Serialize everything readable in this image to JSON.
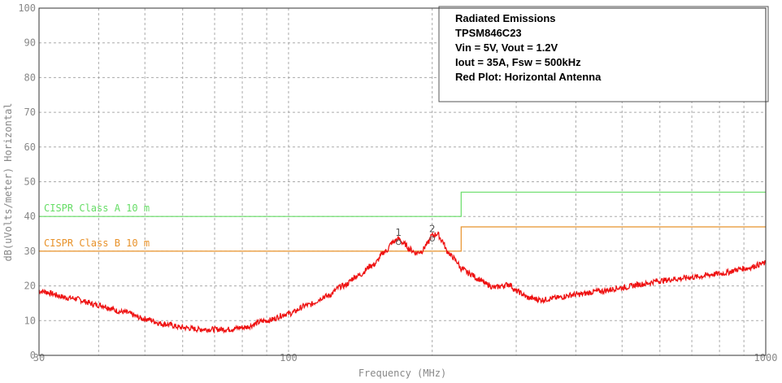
{
  "chart_data": {
    "type": "line",
    "xlabel": "Frequency (MHz)",
    "ylabel": "dB(uVolts/meter) Horizontal",
    "x_scale": "log",
    "xlim": [
      30,
      1000
    ],
    "ylim": [
      0,
      100
    ],
    "x_ticks": [
      {
        "value": 30,
        "label": "30"
      },
      {
        "value": 100,
        "label": "100"
      },
      {
        "value": 1000,
        "label": "1000"
      }
    ],
    "y_ticks": [
      0,
      10,
      20,
      30,
      40,
      50,
      60,
      70,
      80,
      90,
      100
    ],
    "grid": true,
    "info_box": {
      "position": "top-right",
      "lines": [
        "Radiated Emissions",
        "TPSM846C23",
        "Vin = 5V, Vout = 1.2V",
        "Iout = 35A, Fsw = 500kHz",
        "Red Plot: Horizontal Antenna"
      ]
    },
    "limits": [
      {
        "label": "CISPR Class A 10 m",
        "color": "#66dd66",
        "segments": [
          {
            "x": [
              30,
              230
            ],
            "y": 40
          },
          {
            "x": [
              230,
              1000
            ],
            "y": 47
          }
        ]
      },
      {
        "label": "CISPR Class B 10 m",
        "color": "#e8922a",
        "segments": [
          {
            "x": [
              30,
              230
            ],
            "y": 30
          },
          {
            "x": [
              230,
              1000
            ],
            "y": 37
          }
        ]
      }
    ],
    "markers": [
      {
        "label": "1",
        "x": 170,
        "y": 33.5
      },
      {
        "label": "2",
        "x": 200,
        "y": 34.5
      }
    ],
    "series": [
      {
        "color": "#ee1111",
        "x": [
          30,
          35,
          40,
          45,
          50,
          55,
          60,
          65,
          70,
          75,
          80,
          90,
          100,
          110,
          120,
          130,
          140,
          150,
          160,
          165,
          170,
          175,
          180,
          185,
          190,
          195,
          200,
          205,
          210,
          215,
          220,
          225,
          230,
          240,
          250,
          260,
          270,
          280,
          290,
          300,
          320,
          340,
          360,
          400,
          450,
          500,
          550,
          600,
          650,
          700,
          800,
          900,
          1000
        ],
        "y": [
          18.5,
          16.5,
          14.5,
          12.5,
          10.5,
          9,
          8,
          7.5,
          7.5,
          7.5,
          8,
          10,
          12,
          14.5,
          17,
          20,
          23,
          26,
          30,
          32.5,
          33.5,
          32,
          30.5,
          29.5,
          30,
          32,
          34.5,
          35,
          33,
          30,
          28.5,
          27,
          25,
          23.5,
          22,
          20.5,
          19.5,
          20,
          20.5,
          18.5,
          16.5,
          16,
          16.5,
          17.5,
          18.5,
          19.5,
          20.5,
          21.5,
          22,
          22.5,
          23.5,
          25,
          26.5
        ]
      }
    ]
  }
}
